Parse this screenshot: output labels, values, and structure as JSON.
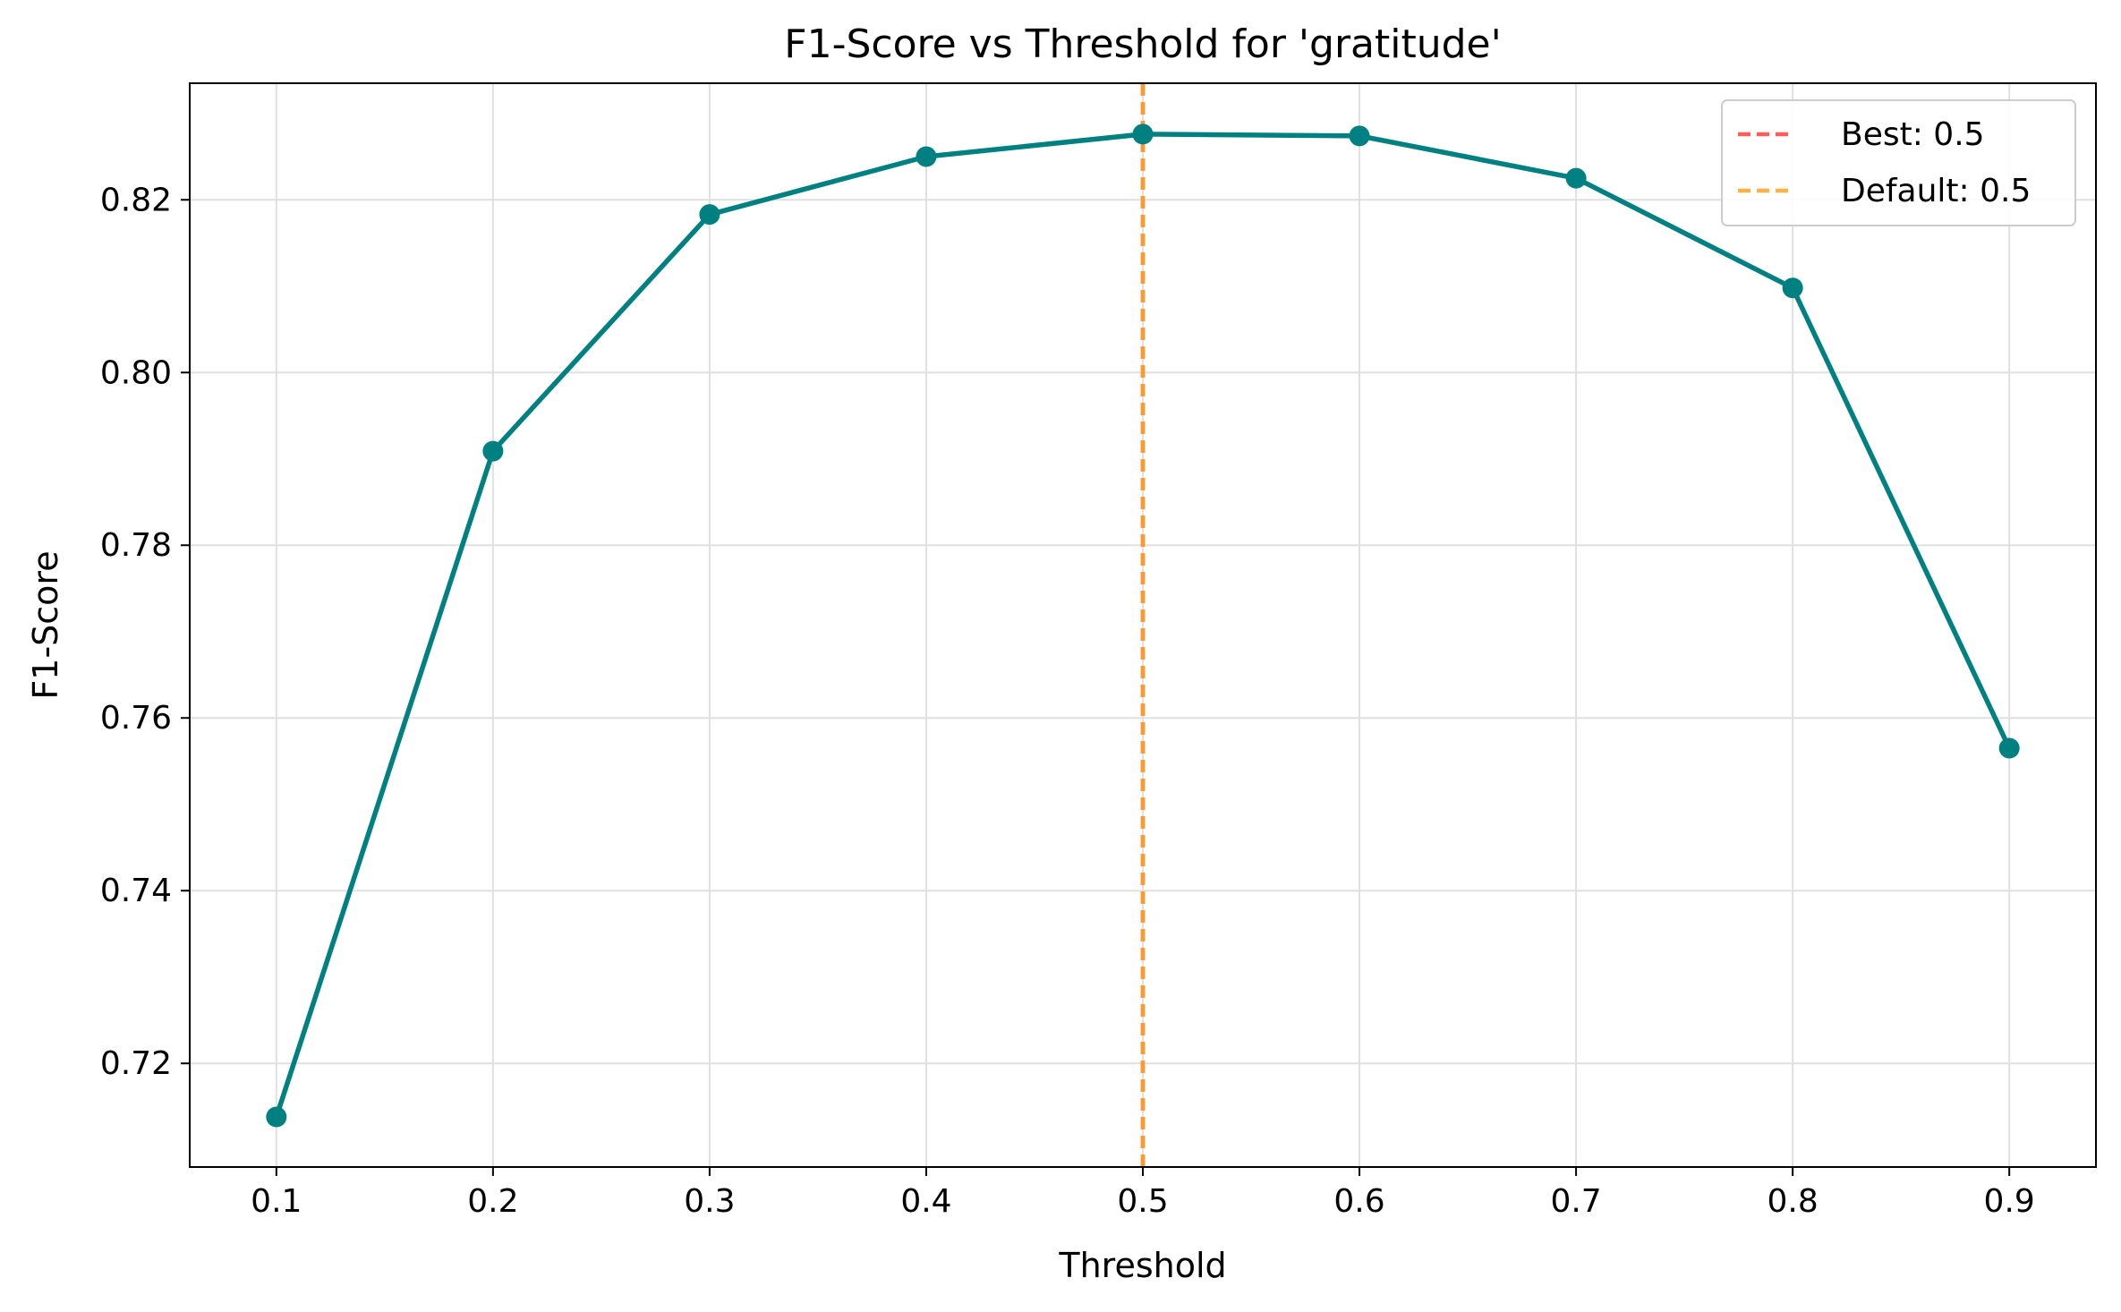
{
  "chart_data": {
    "type": "line",
    "title": "F1-Score vs Threshold for 'gratitude'",
    "xlabel": "Threshold",
    "ylabel": "F1-Score",
    "xlim": [
      0.06,
      0.94
    ],
    "ylim": [
      0.708,
      0.8335
    ],
    "xticks": [
      0.1,
      0.2,
      0.3,
      0.4,
      0.5,
      0.6,
      0.7,
      0.8,
      0.9
    ],
    "xtick_labels": [
      "0.1",
      "0.2",
      "0.3",
      "0.4",
      "0.5",
      "0.6",
      "0.7",
      "0.8",
      "0.9"
    ],
    "yticks": [
      0.72,
      0.74,
      0.76,
      0.78,
      0.8,
      0.82
    ],
    "ytick_labels": [
      "0.72",
      "0.74",
      "0.76",
      "0.78",
      "0.80",
      "0.82"
    ],
    "grid": true,
    "legend_position": "top-right",
    "series": [
      {
        "x": [
          0.1,
          0.2,
          0.3,
          0.4,
          0.5,
          0.6,
          0.7,
          0.8,
          0.9
        ],
        "y": [
          0.7138,
          0.7909,
          0.8183,
          0.825,
          0.8276,
          0.8274,
          0.8225,
          0.8098,
          0.7565
        ],
        "color": "#008080"
      }
    ],
    "vlines": [
      {
        "x": 0.5,
        "label": "Best: 0.5",
        "color": "#ff4040",
        "style": "dashed"
      },
      {
        "x": 0.5,
        "label": "Default: 0.5",
        "color": "#ffa520",
        "style": "dashed"
      }
    ]
  }
}
